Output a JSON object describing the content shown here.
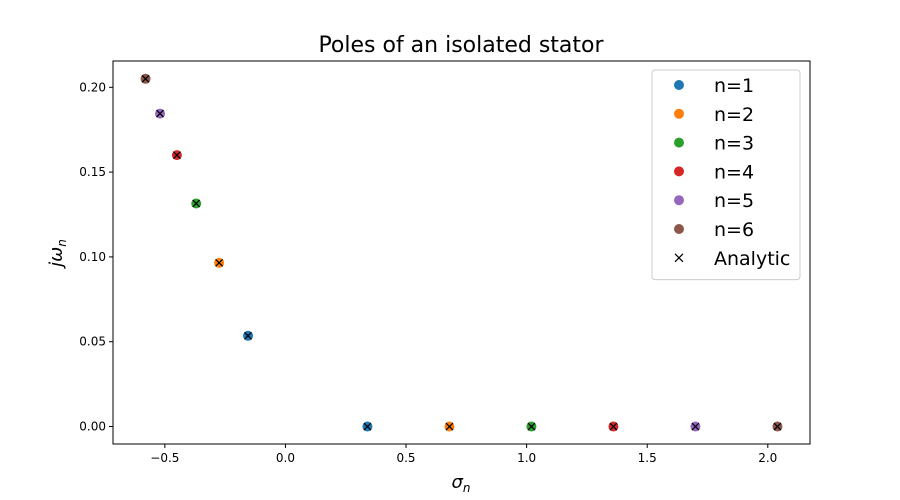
{
  "chart_data": {
    "type": "scatter",
    "title": "Poles of an isolated stator",
    "xlabel": "σ_n",
    "ylabel": "jω_n",
    "xlim": [
      -0.715,
      2.175
    ],
    "ylim": [
      -0.0103,
      0.2155
    ],
    "xticks": [
      -0.5,
      0.0,
      0.5,
      1.0,
      1.5,
      2.0
    ],
    "xtick_labels": [
      "−0.5",
      "0.0",
      "0.5",
      "1.0",
      "1.5",
      "2.0"
    ],
    "yticks": [
      0.0,
      0.05,
      0.1,
      0.15,
      0.2
    ],
    "ytick_labels": [
      "0.00",
      "0.05",
      "0.10",
      "0.15",
      "0.20"
    ],
    "grid": false,
    "legend_position": "top-right",
    "series": [
      {
        "name": "n=1",
        "color": "#1f77b4",
        "marker": "circle",
        "points": [
          {
            "x": -0.155,
            "y": 0.0535
          },
          {
            "x": 0.34,
            "y": 0.0
          }
        ]
      },
      {
        "name": "n=2",
        "color": "#ff7f0e",
        "marker": "circle",
        "points": [
          {
            "x": -0.275,
            "y": 0.0965
          },
          {
            "x": 0.68,
            "y": 0.0
          }
        ]
      },
      {
        "name": "n=3",
        "color": "#2ca02c",
        "marker": "circle",
        "points": [
          {
            "x": -0.37,
            "y": 0.1315
          },
          {
            "x": 1.02,
            "y": 0.0
          }
        ]
      },
      {
        "name": "n=4",
        "color": "#d62728",
        "marker": "circle",
        "points": [
          {
            "x": -0.45,
            "y": 0.16
          },
          {
            "x": 1.36,
            "y": 0.0
          }
        ]
      },
      {
        "name": "n=5",
        "color": "#9467bd",
        "marker": "circle",
        "points": [
          {
            "x": -0.52,
            "y": 0.1845
          },
          {
            "x": 1.7,
            "y": 0.0
          }
        ]
      },
      {
        "name": "n=6",
        "color": "#8c564b",
        "marker": "circle",
        "points": [
          {
            "x": -0.58,
            "y": 0.205
          },
          {
            "x": 2.04,
            "y": 0.0
          }
        ]
      },
      {
        "name": "Analytic",
        "color": "#000000",
        "marker": "x",
        "points": [
          {
            "x": -0.155,
            "y": 0.0535
          },
          {
            "x": 0.34,
            "y": 0.0
          },
          {
            "x": -0.275,
            "y": 0.0965
          },
          {
            "x": 0.68,
            "y": 0.0
          },
          {
            "x": -0.37,
            "y": 0.1315
          },
          {
            "x": 1.02,
            "y": 0.0
          },
          {
            "x": -0.45,
            "y": 0.16
          },
          {
            "x": 1.36,
            "y": 0.0
          },
          {
            "x": -0.52,
            "y": 0.1845
          },
          {
            "x": 1.7,
            "y": 0.0
          },
          {
            "x": -0.58,
            "y": 0.205
          },
          {
            "x": 2.04,
            "y": 0.0
          }
        ]
      }
    ]
  }
}
